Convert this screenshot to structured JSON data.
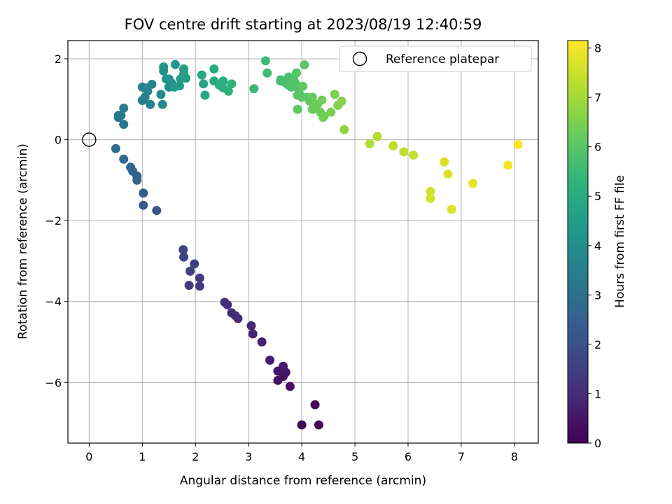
{
  "chart_data": {
    "type": "scatter",
    "title": "FOV centre drift starting at 2023/08/19 12:40:59",
    "xlabel": "Angular distance from reference (arcmin)",
    "ylabel": "Rotation from reference (arcmin)",
    "xlim": [
      -0.4,
      8.45
    ],
    "ylim": [
      -7.5,
      2.45
    ],
    "xticks": [
      0,
      1,
      2,
      3,
      4,
      5,
      6,
      7,
      8
    ],
    "yticks": [
      -6,
      -4,
      -2,
      0,
      2
    ],
    "grid": true,
    "legend": {
      "position": "top-right",
      "entries": [
        "Reference platepar"
      ]
    },
    "reference_point": {
      "x": 0,
      "y": 0
    },
    "colorbar": {
      "label": "Hours from first FF file",
      "range": [
        0,
        8.15
      ],
      "ticks": [
        0,
        1,
        2,
        3,
        4,
        5,
        6,
        7,
        8
      ],
      "colormap": "viridis"
    },
    "points": [
      {
        "x": 4.0,
        "y": -7.05,
        "c": 0.05
      },
      {
        "x": 4.32,
        "y": -7.05,
        "c": 0.1
      },
      {
        "x": 4.25,
        "y": -6.55,
        "c": 0.15
      },
      {
        "x": 3.78,
        "y": -6.1,
        "c": 0.35
      },
      {
        "x": 3.55,
        "y": -5.95,
        "c": 0.4
      },
      {
        "x": 3.65,
        "y": -5.85,
        "c": 0.45
      },
      {
        "x": 3.7,
        "y": -5.75,
        "c": 0.5
      },
      {
        "x": 3.55,
        "y": -5.72,
        "c": 0.5
      },
      {
        "x": 3.65,
        "y": -5.6,
        "c": 0.55
      },
      {
        "x": 3.4,
        "y": -5.45,
        "c": 0.65
      },
      {
        "x": 3.25,
        "y": -5.0,
        "c": 0.75
      },
      {
        "x": 3.08,
        "y": -4.8,
        "c": 0.8
      },
      {
        "x": 3.05,
        "y": -4.6,
        "c": 0.85
      },
      {
        "x": 2.8,
        "y": -4.42,
        "c": 0.95
      },
      {
        "x": 2.75,
        "y": -4.35,
        "c": 1.0
      },
      {
        "x": 2.68,
        "y": -4.28,
        "c": 1.0
      },
      {
        "x": 2.6,
        "y": -4.08,
        "c": 1.05
      },
      {
        "x": 2.55,
        "y": -4.02,
        "c": 1.1
      },
      {
        "x": 2.08,
        "y": -3.62,
        "c": 1.35
      },
      {
        "x": 1.88,
        "y": -3.6,
        "c": 1.4
      },
      {
        "x": 2.08,
        "y": -3.42,
        "c": 1.4
      },
      {
        "x": 1.9,
        "y": -3.25,
        "c": 1.5
      },
      {
        "x": 1.98,
        "y": -3.07,
        "c": 1.55
      },
      {
        "x": 1.78,
        "y": -2.9,
        "c": 1.6
      },
      {
        "x": 1.77,
        "y": -2.72,
        "c": 1.65
      },
      {
        "x": 1.27,
        "y": -1.75,
        "c": 2.1
      },
      {
        "x": 1.02,
        "y": -1.62,
        "c": 2.2
      },
      {
        "x": 1.02,
        "y": -1.32,
        "c": 2.35
      },
      {
        "x": 0.9,
        "y": -1.0,
        "c": 2.5
      },
      {
        "x": 0.9,
        "y": -0.9,
        "c": 2.55
      },
      {
        "x": 0.82,
        "y": -0.78,
        "c": 2.6
      },
      {
        "x": 0.78,
        "y": -0.68,
        "c": 2.65
      },
      {
        "x": 0.65,
        "y": -0.48,
        "c": 2.75
      },
      {
        "x": 0.5,
        "y": -0.22,
        "c": 2.85
      },
      {
        "x": 0.65,
        "y": 0.38,
        "c": 3.2
      },
      {
        "x": 0.55,
        "y": 0.55,
        "c": 3.25
      },
      {
        "x": 0.6,
        "y": 0.6,
        "c": 3.3
      },
      {
        "x": 0.65,
        "y": 0.78,
        "c": 3.35
      },
      {
        "x": 0.55,
        "y": 0.6,
        "c": 3.3
      },
      {
        "x": 1.0,
        "y": 0.97,
        "c": 3.5
      },
      {
        "x": 1.15,
        "y": 0.87,
        "c": 3.55
      },
      {
        "x": 1.05,
        "y": 1.05,
        "c": 3.55
      },
      {
        "x": 1.1,
        "y": 1.2,
        "c": 3.6
      },
      {
        "x": 1.0,
        "y": 1.3,
        "c": 3.6
      },
      {
        "x": 1.08,
        "y": 1.28,
        "c": 3.65
      },
      {
        "x": 1.18,
        "y": 1.37,
        "c": 3.7
      },
      {
        "x": 1.38,
        "y": 0.87,
        "c": 3.8
      },
      {
        "x": 1.35,
        "y": 1.12,
        "c": 3.85
      },
      {
        "x": 1.5,
        "y": 1.3,
        "c": 4.0
      },
      {
        "x": 1.45,
        "y": 1.5,
        "c": 4.05
      },
      {
        "x": 1.55,
        "y": 1.4,
        "c": 4.1
      },
      {
        "x": 1.4,
        "y": 1.7,
        "c": 4.15
      },
      {
        "x": 1.4,
        "y": 1.8,
        "c": 4.2
      },
      {
        "x": 1.5,
        "y": 1.5,
        "c": 4.25
      },
      {
        "x": 1.6,
        "y": 1.3,
        "c": 4.3
      },
      {
        "x": 1.62,
        "y": 1.86,
        "c": 4.35
      },
      {
        "x": 1.7,
        "y": 1.33,
        "c": 4.4
      },
      {
        "x": 1.72,
        "y": 1.5,
        "c": 4.45
      },
      {
        "x": 1.78,
        "y": 1.75,
        "c": 4.5
      },
      {
        "x": 1.78,
        "y": 1.62,
        "c": 4.55
      },
      {
        "x": 1.82,
        "y": 1.52,
        "c": 4.6
      },
      {
        "x": 2.15,
        "y": 1.38,
        "c": 4.75
      },
      {
        "x": 2.12,
        "y": 1.6,
        "c": 4.8
      },
      {
        "x": 2.18,
        "y": 1.1,
        "c": 4.85
      },
      {
        "x": 2.35,
        "y": 1.75,
        "c": 4.95
      },
      {
        "x": 2.35,
        "y": 1.45,
        "c": 5.0
      },
      {
        "x": 2.45,
        "y": 1.35,
        "c": 5.05
      },
      {
        "x": 2.52,
        "y": 1.45,
        "c": 5.1
      },
      {
        "x": 2.52,
        "y": 1.28,
        "c": 5.15
      },
      {
        "x": 2.62,
        "y": 1.2,
        "c": 5.2
      },
      {
        "x": 2.68,
        "y": 1.38,
        "c": 5.25
      },
      {
        "x": 3.1,
        "y": 1.26,
        "c": 5.4
      },
      {
        "x": 3.32,
        "y": 1.95,
        "c": 5.5
      },
      {
        "x": 3.35,
        "y": 1.65,
        "c": 5.55
      },
      {
        "x": 3.6,
        "y": 1.45,
        "c": 5.65
      },
      {
        "x": 3.6,
        "y": 1.48,
        "c": 5.65
      },
      {
        "x": 3.7,
        "y": 1.4,
        "c": 5.7
      },
      {
        "x": 3.75,
        "y": 1.55,
        "c": 5.75
      },
      {
        "x": 3.8,
        "y": 1.45,
        "c": 5.8
      },
      {
        "x": 3.75,
        "y": 1.35,
        "c": 5.8
      },
      {
        "x": 3.8,
        "y": 1.3,
        "c": 5.85
      },
      {
        "x": 3.85,
        "y": 1.5,
        "c": 5.85
      },
      {
        "x": 3.88,
        "y": 1.4,
        "c": 5.9
      },
      {
        "x": 3.9,
        "y": 1.3,
        "c": 5.9
      },
      {
        "x": 3.9,
        "y": 1.65,
        "c": 5.95
      },
      {
        "x": 3.92,
        "y": 1.1,
        "c": 6.0
      },
      {
        "x": 3.95,
        "y": 1.15,
        "c": 6.0
      },
      {
        "x": 4.0,
        "y": 1.05,
        "c": 6.05
      },
      {
        "x": 4.05,
        "y": 1.85,
        "c": 6.05
      },
      {
        "x": 4.02,
        "y": 1.32,
        "c": 6.1
      },
      {
        "x": 3.92,
        "y": 0.75,
        "c": 6.1
      },
      {
        "x": 4.1,
        "y": 1.05,
        "c": 6.15
      },
      {
        "x": 4.15,
        "y": 0.95,
        "c": 6.15
      },
      {
        "x": 4.2,
        "y": 1.05,
        "c": 6.2
      },
      {
        "x": 4.22,
        "y": 0.88,
        "c": 6.2
      },
      {
        "x": 4.2,
        "y": 0.75,
        "c": 6.25
      },
      {
        "x": 4.25,
        "y": 0.78,
        "c": 6.25
      },
      {
        "x": 4.3,
        "y": 0.88,
        "c": 6.3
      },
      {
        "x": 4.35,
        "y": 0.68,
        "c": 6.3
      },
      {
        "x": 4.38,
        "y": 0.98,
        "c": 6.35
      },
      {
        "x": 4.4,
        "y": 0.55,
        "c": 6.35
      },
      {
        "x": 4.42,
        "y": 0.58,
        "c": 6.4
      },
      {
        "x": 4.55,
        "y": 0.68,
        "c": 6.45
      },
      {
        "x": 4.62,
        "y": 1.12,
        "c": 6.5
      },
      {
        "x": 4.68,
        "y": 0.85,
        "c": 6.55
      },
      {
        "x": 4.75,
        "y": 0.95,
        "c": 6.6
      },
      {
        "x": 4.8,
        "y": 0.25,
        "c": 6.75
      },
      {
        "x": 5.28,
        "y": -0.1,
        "c": 7.15
      },
      {
        "x": 5.42,
        "y": 0.08,
        "c": 7.2
      },
      {
        "x": 5.72,
        "y": -0.15,
        "c": 7.3
      },
      {
        "x": 5.92,
        "y": -0.3,
        "c": 7.35
      },
      {
        "x": 6.1,
        "y": -0.38,
        "c": 7.4
      },
      {
        "x": 6.42,
        "y": -1.28,
        "c": 7.55
      },
      {
        "x": 6.42,
        "y": -1.45,
        "c": 7.6
      },
      {
        "x": 6.68,
        "y": -0.55,
        "c": 7.65
      },
      {
        "x": 6.75,
        "y": -0.85,
        "c": 7.7
      },
      {
        "x": 6.82,
        "y": -1.72,
        "c": 7.75
      },
      {
        "x": 7.22,
        "y": -1.08,
        "c": 7.85
      },
      {
        "x": 7.88,
        "y": -0.63,
        "c": 8.0
      },
      {
        "x": 8.07,
        "y": -0.12,
        "c": 8.1
      }
    ]
  }
}
